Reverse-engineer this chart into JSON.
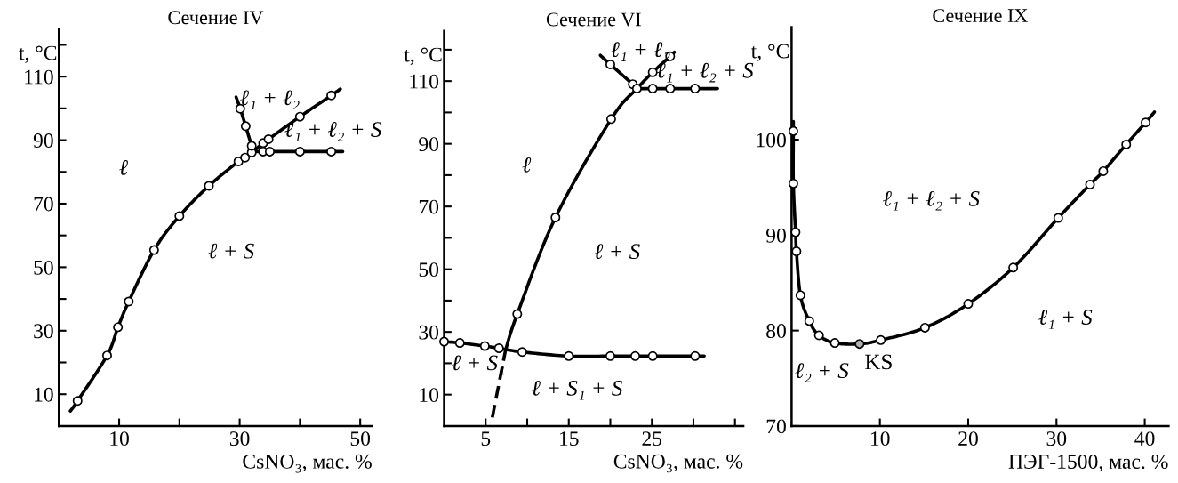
{
  "chart_data": [
    {
      "type": "line",
      "title": "Сечение IV",
      "xlabel": "CsNO₃, мас. %",
      "ylabel": "t, °C",
      "xlim": [
        0,
        52
      ],
      "ylim": [
        0,
        125
      ],
      "xticks": [
        10,
        {
          "value": 20,
          "label": null
        },
        30,
        {
          "value": 40,
          "label": null
        },
        50
      ],
      "yticks": [
        10,
        {
          "value": 20,
          "label": null
        },
        30,
        {
          "value": 40,
          "label": null
        },
        50,
        {
          "value": 60,
          "label": null
        },
        70,
        {
          "value": 80,
          "label": null
        },
        90,
        {
          "value": 100,
          "label": null
        },
        110,
        {
          "value": 120,
          "label": null
        }
      ],
      "series": [
        {
          "color": "#000000",
          "x": [
            1.9,
            3.1,
            8.0,
            9.8,
            11.6,
            15.8,
            20.0,
            24.9,
            29.8,
            30.9,
            32.0,
            33.9,
            34.8,
            40.0,
            45.2,
            46.7
          ],
          "values": [
            4.7,
            7.9,
            22.2,
            31.1,
            39.2,
            55.4,
            66.1,
            75.6,
            83.3,
            84.5,
            86.1,
            89.1,
            90.3,
            97.4,
            104.1,
            106.1
          ]
        },
        {
          "color": "#000000",
          "x": [
            29.4,
            30.1,
            31.0,
            32.0,
            32.4
          ],
          "values": [
            103.6,
            99.9,
            94.4,
            88.2,
            86.4
          ]
        },
        {
          "color": "#000000",
          "x": [
            32.4,
            33.9,
            35.0,
            40.0,
            45.2,
            47.1
          ],
          "values": [
            86.4,
            86.4,
            86.4,
            86.4,
            86.4,
            86.4
          ]
        },
        {
          "type": "scatter",
          "marker": "circle",
          "color": "#000000",
          "x": [
            3.1,
            8.0,
            9.8,
            11.6,
            15.8,
            20.0,
            24.9,
            29.8,
            30.9,
            32.0,
            33.9,
            34.8,
            40.0,
            45.2,
            30.1,
            31.0,
            32.0,
            33.9,
            35.0,
            40.0,
            45.2
          ],
          "values": [
            7.9,
            22.2,
            31.1,
            39.2,
            55.4,
            66.1,
            75.6,
            83.3,
            84.5,
            86.1,
            89.1,
            90.3,
            97.4,
            104.1,
            99.9,
            94.4,
            88.2,
            86.4,
            86.4,
            86.4,
            86.4
          ]
        }
      ],
      "annotations": [
        "ℓ",
        "ℓ + S",
        "ℓ₁ + ℓ₂",
        "ℓ₁ + ℓ₂ + S"
      ]
    },
    {
      "type": "line",
      "title": "Сечение VI",
      "xlabel": "CsNO₃, мас. %",
      "ylabel": "t, °C",
      "xlim": [
        0,
        36
      ],
      "ylim": [
        0,
        126
      ],
      "xticks": [
        5,
        {
          "value": 10,
          "label": null
        },
        15,
        {
          "value": 20,
          "label": null
        },
        25,
        {
          "value": 30,
          "label": null
        },
        {
          "value": 35,
          "label": null
        }
      ],
      "yticks": [
        10,
        {
          "value": 20,
          "label": null
        },
        30,
        {
          "value": 40,
          "label": null
        },
        50,
        {
          "value": 60,
          "label": null
        },
        70,
        {
          "value": 80,
          "label": null
        },
        90,
        {
          "value": 100,
          "label": null
        },
        110,
        {
          "value": 120,
          "label": null
        }
      ],
      "series": [
        {
          "color": "#000000",
          "line_style": "dashed",
          "x": [
            5.8,
            7.4
          ],
          "values": [
            2.7,
            24.3
          ]
        },
        {
          "color": "#000000",
          "x": [
            7.4,
            8.8,
            13.4,
            20.1,
            23.2,
            25.1,
            27.2,
            27.7
          ],
          "values": [
            24.3,
            35.7,
            66.5,
            97.9,
            107.6,
            112.8,
            117.9,
            119.2
          ]
        },
        {
          "color": "#000000",
          "x": [
            18.8,
            20.0,
            22.7,
            23.2
          ],
          "values": [
            118.2,
            115.3,
            109.0,
            107.6
          ]
        },
        {
          "color": "#000000",
          "x": [
            23.2,
            25.1,
            27.2,
            30.2,
            32.9
          ],
          "values": [
            107.6,
            107.6,
            107.6,
            107.6,
            107.6
          ]
        },
        {
          "color": "#000000",
          "x": [
            0,
            1.9,
            4.9,
            6.6,
            9.4,
            15.0,
            20.0,
            23.0,
            25.1,
            30.2,
            31.3
          ],
          "values": [
            26.9,
            26.5,
            25.5,
            24.8,
            23.6,
            22.3,
            22.3,
            22.3,
            22.3,
            22.3,
            22.3
          ]
        },
        {
          "type": "scatter",
          "marker": "circle",
          "color": "#000000",
          "x": [
            8.8,
            13.4,
            20.1,
            25.1,
            27.2,
            20.0,
            22.7,
            23.2,
            25.1,
            27.2,
            30.2,
            0,
            1.9,
            4.9,
            6.6,
            9.4,
            15.0,
            20.0,
            23.0,
            25.1,
            30.2
          ],
          "values": [
            35.7,
            66.5,
            97.9,
            112.8,
            117.9,
            115.3,
            109.0,
            107.6,
            107.6,
            107.6,
            107.6,
            26.9,
            26.5,
            25.5,
            24.8,
            23.6,
            22.3,
            22.3,
            22.3,
            22.3,
            22.3
          ]
        }
      ],
      "annotations": [
        "ℓ",
        "ℓ + S",
        "ℓ₁ + ℓ₂",
        "ℓ₁ + ℓ₂ + S",
        "ℓ + S₁",
        "ℓ + S₁ + S"
      ]
    },
    {
      "type": "line",
      "title": "Сечение IX",
      "xlabel": "ПЭГ-1500, мас. %",
      "ylabel": "t, °C",
      "xlim": [
        0,
        42.7
      ],
      "ylim": [
        70,
        111.8
      ],
      "xticks": [
        10,
        20,
        30,
        40
      ],
      "yticks": [
        70,
        80,
        90,
        100
      ],
      "series": [
        {
          "color": "#000000",
          "x": [
            0.2,
            0.2,
            0.2,
            0.45,
            0.55,
            1.0,
            2.0,
            3.1,
            4.9,
            7.7,
            10.1,
            15.1,
            20.0,
            25.1,
            30.2,
            33.8,
            35.3,
            37.9,
            40.1,
            41.1
          ],
          "values": [
            101.9,
            100.9,
            95.4,
            90.3,
            88.3,
            83.7,
            81.0,
            79.5,
            78.7,
            78.6,
            79.0,
            80.3,
            82.8,
            86.6,
            91.8,
            95.3,
            96.7,
            99.5,
            101.8,
            102.9
          ]
        },
        {
          "type": "scatter",
          "marker": "circle",
          "color": "#000000",
          "x": [
            0.2,
            0.2,
            0.45,
            0.55,
            1.0,
            2.0,
            3.1,
            4.9,
            10.1,
            15.1,
            20.0,
            25.1,
            30.2,
            33.8,
            35.3,
            37.9,
            40.1
          ],
          "values": [
            100.9,
            95.4,
            90.3,
            88.3,
            83.7,
            81.0,
            79.5,
            78.7,
            79.0,
            80.3,
            82.8,
            86.6,
            91.8,
            95.3,
            96.7,
            99.5,
            101.8
          ]
        },
        {
          "type": "scatter",
          "marker": "circle",
          "color": "#b0b0b0",
          "x": [
            7.7
          ],
          "values": [
            78.6
          ]
        }
      ],
      "annotations": [
        "ℓ₁ + ℓ₂ + S",
        "ℓ₁ + S",
        "ℓ₂ + S",
        {
          "text": "KS",
          "x": 7.7,
          "y": 78.6
        }
      ]
    }
  ]
}
